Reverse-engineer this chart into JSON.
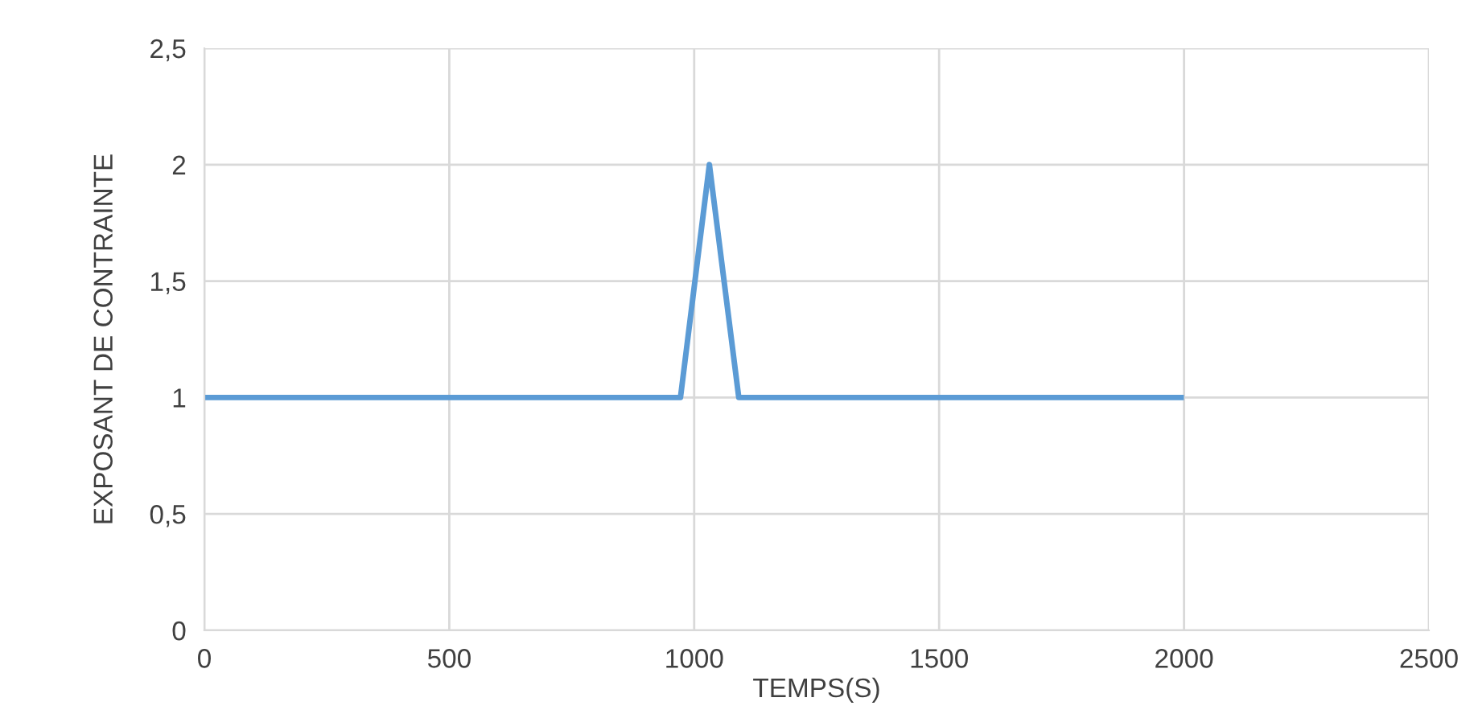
{
  "chart_data": {
    "type": "line",
    "xlabel": "TEMPS(S)",
    "ylabel": "EXPOSANT DE CONTRAINTE",
    "x": [
      0,
      972,
      1031,
      1091,
      1994
    ],
    "series": [
      {
        "color": "#5b9bd5",
        "values": [
          1,
          1,
          2,
          1,
          1
        ]
      }
    ],
    "xlim": [
      0,
      2500
    ],
    "xticks": [
      0,
      500,
      1000,
      1500,
      2000,
      2500
    ],
    "ylim": [
      0,
      2.5
    ],
    "yticks": [
      0,
      {
        "value": 0.5,
        "label": "0,5"
      },
      1,
      {
        "value": 1.5,
        "label": "1,5"
      },
      2,
      {
        "value": 2.5,
        "label": "2,5"
      }
    ],
    "grid": true,
    "marker": "none",
    "line_style": "solid"
  }
}
